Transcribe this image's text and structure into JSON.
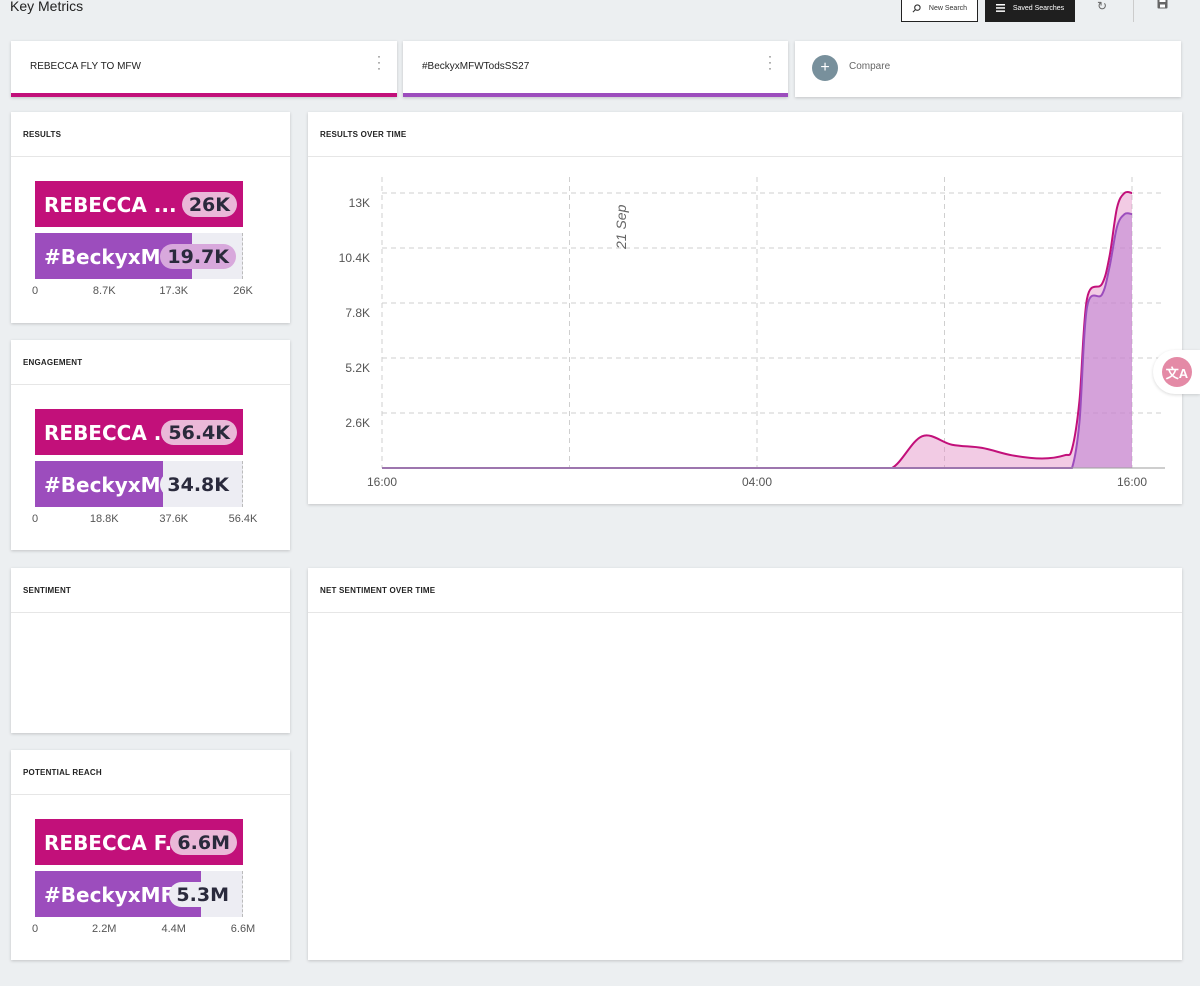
{
  "page": {
    "title": "Key Metrics"
  },
  "toolbar": {
    "new_search": "New Search",
    "saved_searches": "Saved Searches"
  },
  "colors": {
    "primary": "#c2107a",
    "secondary": "#9c4dbd",
    "primary_light": "#eab8d8",
    "secondary_light": "#d8a8dc"
  },
  "searches": [
    {
      "label": "REBECCA FLY TO MFW",
      "color": "#c2107a"
    },
    {
      "label": "#BeckyxMFWTodsSS27",
      "color": "#9c4dbd"
    }
  ],
  "compare": {
    "label": "Compare"
  },
  "results": {
    "title": "RESULTS",
    "bars": [
      {
        "name": "REBECCA ...",
        "value_label": "26K",
        "fraction": 1.0
      },
      {
        "name": "#BeckyxM...",
        "value_label": "19.7K",
        "fraction": 0.758
      }
    ],
    "ticks": [
      "0",
      "8.7K",
      "17.3K",
      "26K"
    ]
  },
  "engagement": {
    "title": "ENGAGEMENT",
    "bars": [
      {
        "name": "REBECCA ...",
        "value_label": "56.4K",
        "fraction": 1.0
      },
      {
        "name": "#BeckyxM...",
        "value_label": "34.8K",
        "fraction": 0.617
      }
    ],
    "ticks": [
      "0",
      "18.8K",
      "37.6K",
      "56.4K"
    ]
  },
  "sentiment": {
    "title": "SENTIMENT"
  },
  "potential_reach": {
    "title": "POTENTIAL REACH",
    "bars": [
      {
        "name": "REBECCA F...",
        "value_label": "6.6M",
        "fraction": 1.0
      },
      {
        "name": "#BeckyxMF...",
        "value_label": "5.3M",
        "fraction": 0.803
      }
    ],
    "ticks": [
      "0",
      "2.2M",
      "4.4M",
      "6.6M"
    ]
  },
  "results_over_time": {
    "title": "RESULTS OVER TIME",
    "annotation": "21 Sep"
  },
  "net_sentiment": {
    "title": "NET SENTIMENT OVER TIME"
  },
  "chart_data": {
    "type": "area",
    "x_ticks": [
      "16:00",
      "04:00",
      "16:00"
    ],
    "y_ticks": [
      "2.6K",
      "5.2K",
      "7.8K",
      "10.4K",
      "13K"
    ],
    "y_tick_values": [
      2600,
      5200,
      7800,
      10400,
      13000
    ],
    "ylim": [
      0,
      13000
    ],
    "grid": true,
    "x_points": [
      0,
      0.4,
      0.48,
      0.56,
      0.64,
      0.68,
      0.72,
      0.76,
      0.8,
      0.84,
      0.88,
      0.91,
      0.92,
      0.93,
      0.94,
      0.96,
      0.97,
      0.98,
      0.99,
      1.0
    ],
    "series": [
      {
        "name": "REBECCA FLY TO MFW",
        "color": "#c2107a",
        "values": [
          0,
          0,
          0,
          0,
          0,
          0,
          1500,
          1100,
          950,
          600,
          450,
          600,
          900,
          3200,
          8000,
          8700,
          10000,
          12300,
          13000,
          13000
        ]
      },
      {
        "name": "#BeckyxMFWTodsSS27",
        "color": "#9c4dbd",
        "values": [
          0,
          0,
          0,
          0,
          0,
          0,
          0,
          0,
          0,
          0,
          0,
          0,
          0,
          2200,
          7600,
          8200,
          9500,
          11400,
          12000,
          12000
        ]
      }
    ]
  }
}
